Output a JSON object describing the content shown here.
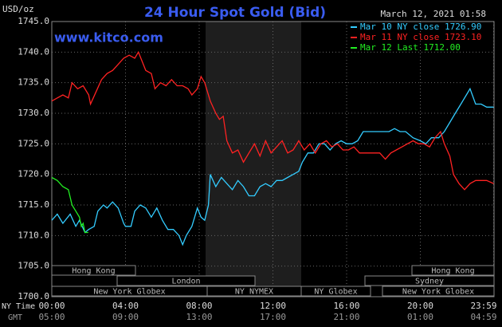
{
  "chart_data": {
    "type": "line",
    "title": "24 Hour Spot Gold (Bid)",
    "subtitle": "www.kitco.com",
    "timestamp": "March 12, 2021 01:58",
    "y_label": "USD/oz",
    "x_label": "NY Time",
    "x2_label": "GMT",
    "xlim": [
      0,
      24
    ],
    "xticks": [
      {
        "value": 0,
        "label": "00:00"
      },
      {
        "value": 4,
        "label": "04:00"
      },
      {
        "value": 8,
        "label": "08:00"
      },
      {
        "value": 12,
        "label": "12:00"
      },
      {
        "value": 16,
        "label": "16:00"
      },
      {
        "value": 20,
        "label": "20:00"
      },
      {
        "value": 23.98,
        "label": "23:59"
      }
    ],
    "xticks_gmt": [
      "05:00",
      "09:00",
      "13:00",
      "17:00",
      "21:00",
      "01:00",
      "04:59"
    ],
    "ylim": [
      1700,
      1745
    ],
    "yticks": [
      {
        "value": 1700,
        "label": "1700.0"
      },
      {
        "value": 1705,
        "label": "1705.0"
      },
      {
        "value": 1710,
        "label": "1710.0"
      },
      {
        "value": 1715,
        "label": "1715.0"
      },
      {
        "value": 1720,
        "label": "1720.0"
      },
      {
        "value": 1725,
        "label": "1725.0"
      },
      {
        "value": 1730,
        "label": "1730.0"
      },
      {
        "value": 1735,
        "label": "1735.0"
      },
      {
        "value": 1740,
        "label": "1740.0"
      },
      {
        "value": 1745,
        "label": "1745.0"
      }
    ],
    "grid": true,
    "legend": "top-right",
    "sessions": [
      "Hong Kong",
      "London",
      "New York Globex",
      "NY NYMEX",
      "NY Globex",
      "Hong Kong",
      "Sydney",
      "New York Globex"
    ],
    "series": [
      {
        "name": "Mar 10 NY close 1726.90",
        "color": "#33ccff",
        "x": [
          0,
          0.3,
          0.6,
          1,
          1.3,
          1.5,
          1.8,
          2,
          2.3,
          2.5,
          2.8,
          3,
          3.3,
          3.6,
          3.9,
          4,
          4.3,
          4.5,
          4.8,
          5.1,
          5.4,
          5.7,
          6,
          6.3,
          6.6,
          6.9,
          7.1,
          7.3,
          7.6,
          7.9,
          8.1,
          8.3,
          8.5,
          8.6,
          8.9,
          9.2,
          9.5,
          9.8,
          10.1,
          10.4,
          10.7,
          11,
          11.3,
          11.6,
          11.9,
          12.2,
          12.5,
          12.8,
          13.1,
          13.4,
          13.6,
          13.9,
          14.2,
          14.5,
          14.8,
          15.1,
          15.4,
          15.7,
          16,
          16.3,
          16.6,
          16.9,
          17.3,
          17.8,
          18.3,
          18.6,
          18.9,
          19.2,
          19.6,
          20,
          20.3,
          20.6,
          21,
          21.3,
          21.6,
          21.9,
          22.2,
          22.5,
          22.7,
          23,
          23.3,
          23.6,
          23.98
        ],
        "values": [
          1712.5,
          1713.5,
          1712,
          1713.5,
          1711.5,
          1712.5,
          1710.5,
          1711,
          1711.5,
          1714,
          1715,
          1714.5,
          1715.5,
          1714.5,
          1712,
          1711.5,
          1711.5,
          1714,
          1715,
          1714.5,
          1713,
          1714.5,
          1712.5,
          1711,
          1711,
          1710,
          1708.5,
          1710,
          1711.5,
          1714.5,
          1713,
          1712.5,
          1715,
          1720,
          1718,
          1719.5,
          1718.5,
          1717.5,
          1719,
          1718,
          1716.5,
          1716.5,
          1718,
          1718.5,
          1718,
          1719,
          1719,
          1719.5,
          1720,
          1720.5,
          1722,
          1723.5,
          1723.5,
          1725,
          1725,
          1724,
          1725,
          1725.5,
          1725,
          1725,
          1725.5,
          1727,
          1727,
          1727,
          1727,
          1727.5,
          1727,
          1727,
          1726,
          1725.5,
          1725,
          1726,
          1726,
          1727,
          1728.5,
          1730,
          1731.5,
          1733,
          1734,
          1731.5,
          1731.5,
          1731,
          1731
        ]
      },
      {
        "name": "Mar 11 NY close 1723.10",
        "color": "#ff2222",
        "x": [
          0,
          0.3,
          0.6,
          0.9,
          1.1,
          1.4,
          1.7,
          2,
          2.1,
          2.4,
          2.7,
          3,
          3.3,
          3.6,
          3.9,
          4.2,
          4.5,
          4.7,
          4.9,
          5.1,
          5.4,
          5.6,
          5.9,
          6.2,
          6.5,
          6.8,
          7.1,
          7.4,
          7.6,
          7.9,
          8.1,
          8.3,
          8.6,
          8.9,
          9.1,
          9.3,
          9.5,
          9.8,
          10.1,
          10.4,
          10.7,
          11,
          11.3,
          11.6,
          11.9,
          12.2,
          12.5,
          12.8,
          13.1,
          13.4,
          13.7,
          14,
          14.3,
          14.6,
          14.9,
          15.2,
          15.5,
          15.8,
          16.1,
          16.4,
          16.7,
          17,
          17.4,
          17.8,
          18.1,
          18.4,
          18.7,
          19,
          19.3,
          19.6,
          19.9,
          20.2,
          20.5,
          20.8,
          21.1,
          21.3,
          21.6,
          21.8,
          22.1,
          22.4,
          22.7,
          23,
          23.3,
          23.6,
          23.98
        ],
        "values": [
          1732,
          1732.5,
          1733,
          1732.5,
          1735,
          1734,
          1734.5,
          1733,
          1731.5,
          1733.5,
          1735.5,
          1736.5,
          1737,
          1738,
          1739,
          1739.5,
          1739,
          1740,
          1738.5,
          1737,
          1736.5,
          1734,
          1735,
          1734.5,
          1735.5,
          1734.5,
          1734.5,
          1734,
          1733,
          1734,
          1736,
          1735,
          1732,
          1730,
          1729,
          1729.5,
          1725.5,
          1723.5,
          1724,
          1722,
          1723.5,
          1725,
          1723,
          1725.5,
          1723.5,
          1724.5,
          1725.5,
          1723.5,
          1724,
          1725.5,
          1724,
          1725,
          1723.5,
          1725,
          1725.5,
          1724.5,
          1725,
          1724,
          1724,
          1724.5,
          1723.5,
          1723.5,
          1723.5,
          1723.5,
          1722.5,
          1723.5,
          1724,
          1724.5,
          1725,
          1725.5,
          1725,
          1725,
          1724.5,
          1726,
          1727,
          1725,
          1723,
          1720,
          1718.5,
          1717.5,
          1718.5,
          1719,
          1719,
          1719,
          1718.5
        ]
      },
      {
        "name": "Mar 12 Last 1712.00",
        "color": "#22ee22",
        "x": [
          0,
          0.3,
          0.6,
          0.9,
          1.1,
          1.3,
          1.5,
          1.6,
          1.7,
          1.8,
          1.98
        ],
        "values": [
          1719.5,
          1719,
          1718,
          1717.5,
          1715,
          1714,
          1713,
          1711.5,
          1712,
          1710.5,
          1710.5
        ]
      }
    ]
  }
}
